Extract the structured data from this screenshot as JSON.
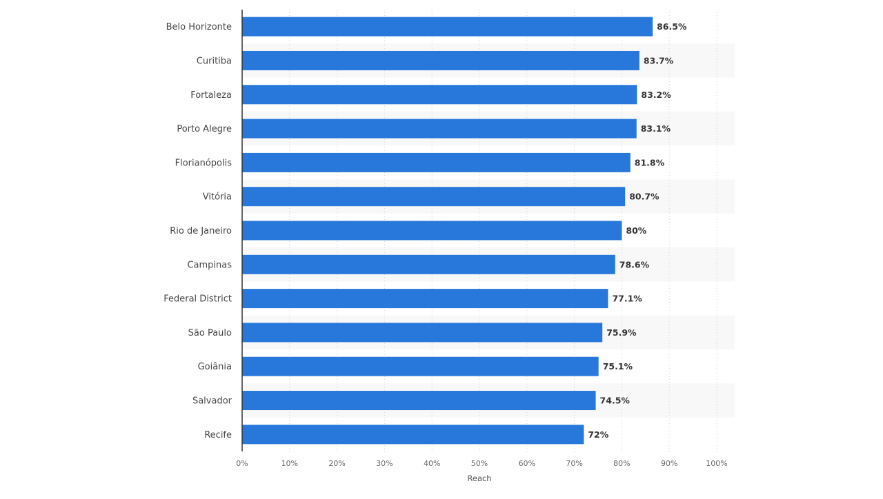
{
  "chart_data": {
    "type": "bar",
    "orientation": "horizontal",
    "categories": [
      "Belo Horizonte",
      "Curitiba",
      "Fortaleza",
      "Porto Alegre",
      "Florianópolis",
      "Vitória",
      "Rio de Janeiro",
      "Campinas",
      "Federal District",
      "São Paulo",
      "Goiânia",
      "Salvador",
      "Recife"
    ],
    "values": [
      86.5,
      83.7,
      83.2,
      83.1,
      81.8,
      80.7,
      80,
      78.6,
      77.1,
      75.9,
      75.1,
      74.5,
      72
    ],
    "value_labels": [
      "86.5%",
      "83.7%",
      "83.2%",
      "83.1%",
      "81.8%",
      "80.7%",
      "80%",
      "78.6%",
      "77.1%",
      "75.9%",
      "75.1%",
      "74.5%",
      "72%"
    ],
    "xlabel": "Reach",
    "ylabel": "",
    "xlim": [
      0,
      100
    ],
    "ticks": [
      0,
      10,
      20,
      30,
      40,
      50,
      60,
      70,
      80,
      90,
      100
    ],
    "tick_labels": [
      "0%",
      "10%",
      "20%",
      "30%",
      "40%",
      "50%",
      "60%",
      "70%",
      "80%",
      "90%",
      "100%"
    ],
    "grid": true,
    "legend": "none",
    "bar_color": "#2878dc"
  }
}
